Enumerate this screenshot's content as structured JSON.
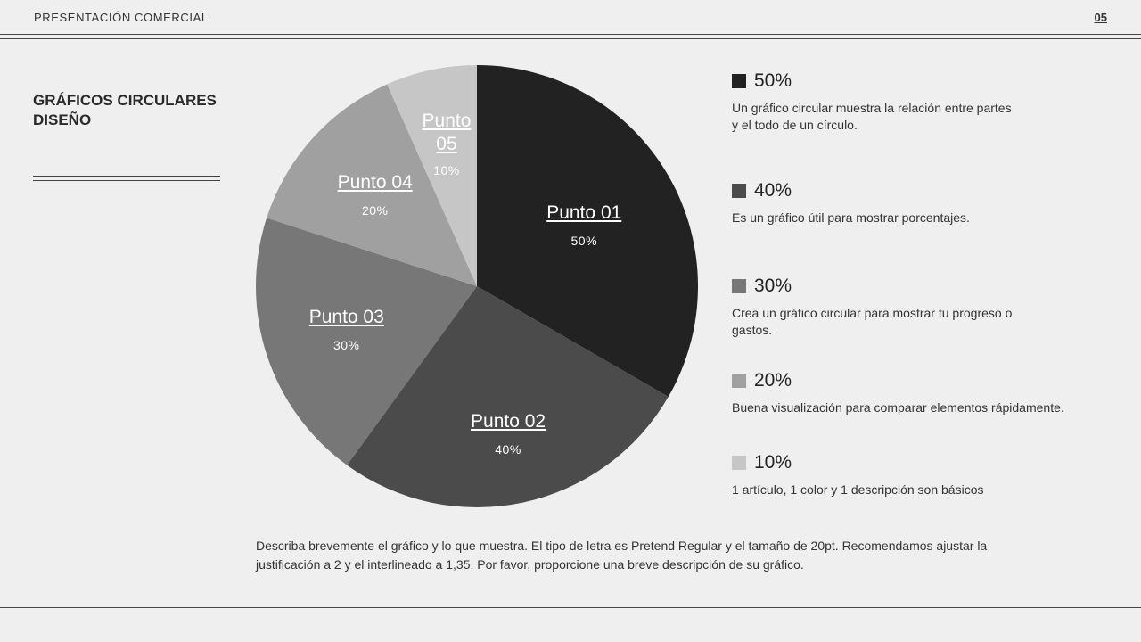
{
  "header": {
    "title": "PRESENTACIÓN COMERCIAL",
    "page_number": "05"
  },
  "sidebar": {
    "title": "GRÁFICOS CIRCULARES DISEÑO"
  },
  "chart_data": {
    "type": "pie",
    "title": "",
    "categories": [
      "Punto 01",
      "Punto 02",
      "Punto 03",
      "Punto 04",
      "Punto 05"
    ],
    "values": [
      50,
      40,
      30,
      20,
      10
    ],
    "value_labels": [
      "50%",
      "40%",
      "30%",
      "20%",
      "10%"
    ],
    "colors": [
      "#222222",
      "#4b4b4b",
      "#777777",
      "#a0a0a0",
      "#c6c6c6"
    ],
    "label_colors": [
      "#ffffff",
      "#ffffff",
      "#ffffff",
      "#ffffff",
      "#ffffff"
    ],
    "start_angle": "12 o'clock, clockwise"
  },
  "legend": [
    {
      "pct": "50%",
      "color": "#222222",
      "desc": "Un gráfico circular muestra la relación entre partes\ny el todo de un círculo."
    },
    {
      "pct": "40%",
      "color": "#4b4b4b",
      "desc": "Es un gráfico útil para mostrar porcentajes."
    },
    {
      "pct": "30%",
      "color": "#777777",
      "desc": "Crea un gráfico circular para mostrar tu progreso o\ngastos."
    },
    {
      "pct": "20%",
      "color": "#a0a0a0",
      "desc": "Buena visualización para comparar elementos rápidamente."
    },
    {
      "pct": "10%",
      "color": "#c6c6c6",
      "desc": "1 artículo, 1 color y 1 descripción son básicos"
    }
  ],
  "footer": {
    "description": "Describa brevemente el gráfico y lo que muestra. El tipo de letra es Pretend Regular y el tamaño de 20pt. Recomendamos ajustar la justificación a 2 y el interlineado a 1,35. Por favor, proporcione una breve descripción de su gráfico."
  }
}
